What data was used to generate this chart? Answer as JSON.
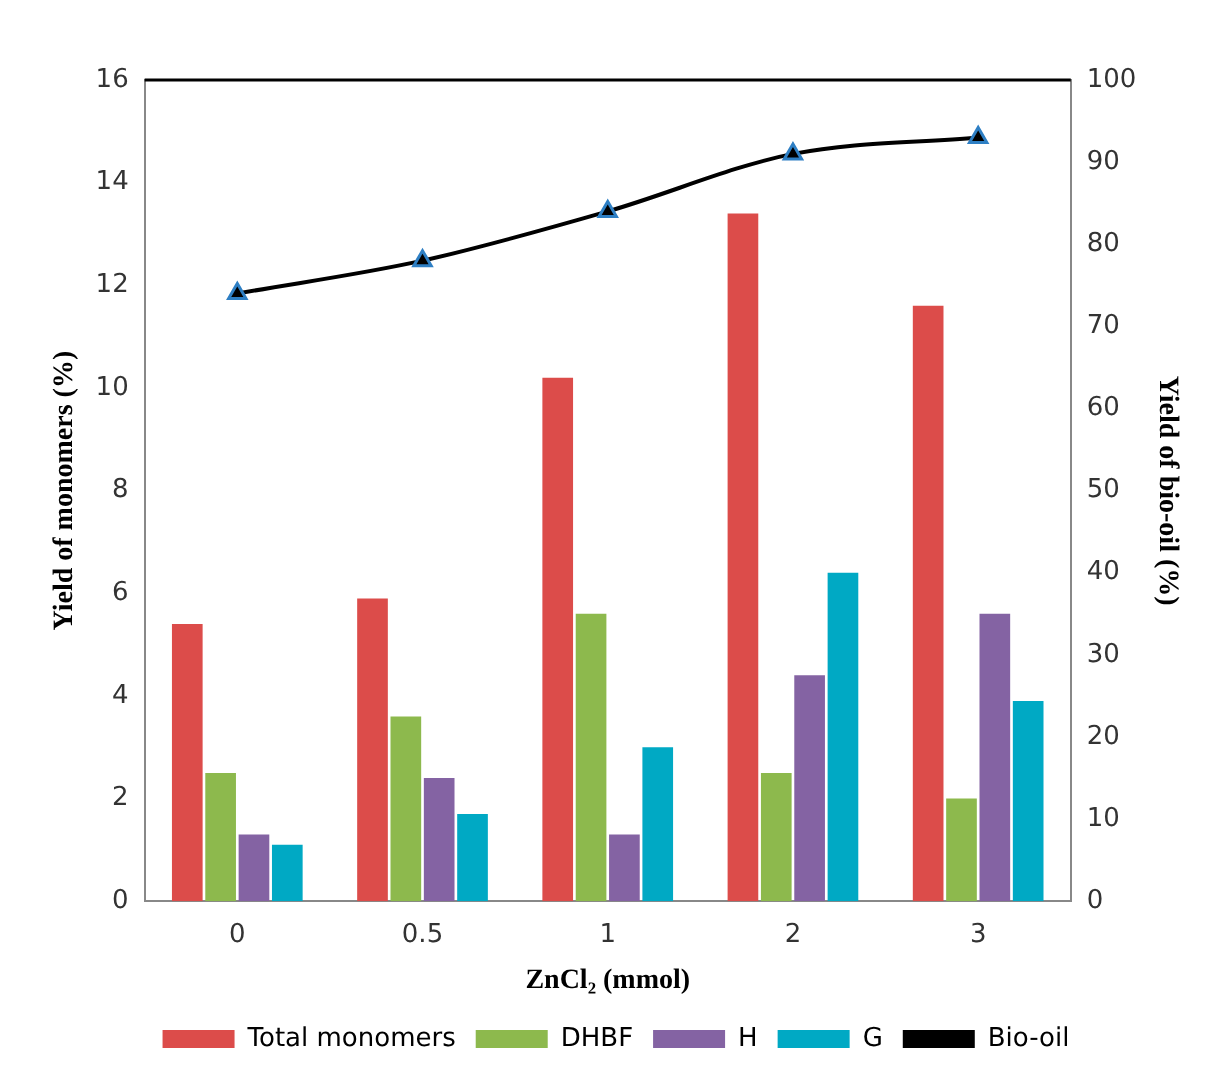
{
  "chart_data": {
    "type": "bar",
    "xlabel": "ZnCl₂ (mmol)",
    "ylabel": "Yield of monomers (%)",
    "y2label": "Yield of bio-oil (%)",
    "categories": [
      "0",
      "0.5",
      "1",
      "2",
      "3"
    ],
    "series": [
      {
        "name": "Total monomers",
        "color": "#dc4c4a",
        "values": [
          5.4,
          5.9,
          10.2,
          13.4,
          11.6
        ]
      },
      {
        "name": "DHBF",
        "color": "#8db94d",
        "values": [
          2.5,
          3.6,
          5.6,
          2.5,
          2.0
        ]
      },
      {
        "name": "H",
        "color": "#8463a3",
        "values": [
          1.3,
          2.4,
          1.3,
          4.4,
          5.6
        ]
      },
      {
        "name": "G",
        "color": "#00a9c4",
        "values": [
          1.1,
          1.7,
          3.0,
          6.4,
          3.9
        ]
      },
      {
        "name": "Bio-oil",
        "type": "line",
        "axis": "y2",
        "color": "#000000",
        "marker": "triangle",
        "values": [
          74,
          78,
          84,
          91,
          93
        ]
      }
    ],
    "ylim": [
      0,
      16
    ],
    "yticks": [
      0,
      2,
      4,
      6,
      8,
      10,
      12,
      14,
      16
    ],
    "y2lim": [
      0,
      100
    ],
    "y2ticks": [
      0,
      10,
      20,
      30,
      40,
      50,
      60,
      70,
      80,
      90,
      100
    ],
    "grid": false,
    "legend": "bottom"
  }
}
